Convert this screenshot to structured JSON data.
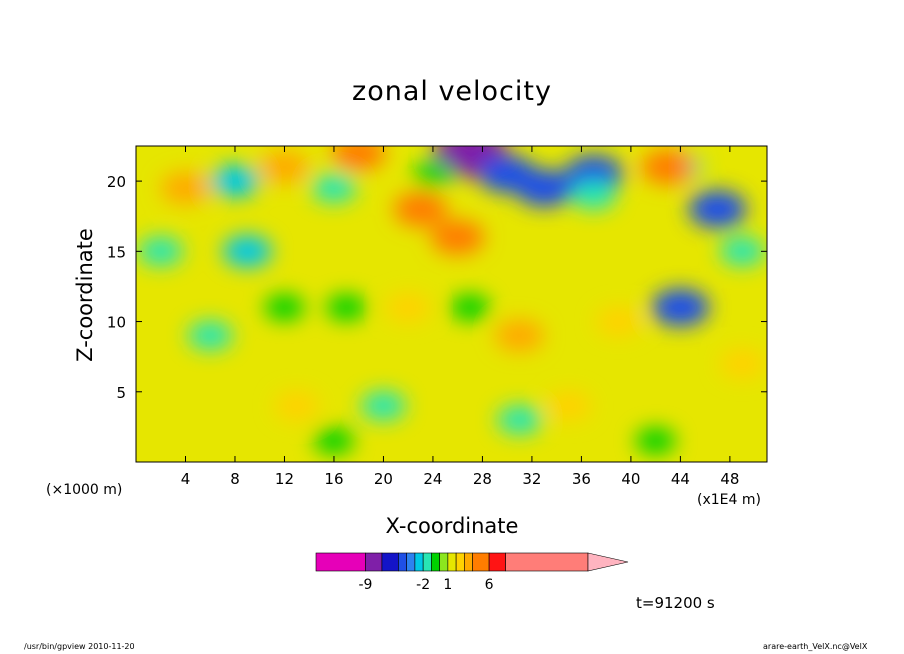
{
  "figure": {
    "title": "zonal velocity",
    "time_label": "t=91200 s",
    "x_unit_label": "(×1000 m)",
    "x_scale_label": "(x1E4 m)",
    "footer_left": "/usr/bin/gpview   2010-11-20",
    "footer_right": "arare-earth_VelX.nc@VelX"
  },
  "chart_data": {
    "type": "heatmap",
    "title": "zonal velocity",
    "xlabel": "X-coordinate",
    "ylabel": "Z-coordinate",
    "x_ticks": [
      4,
      8,
      12,
      16,
      20,
      24,
      28,
      32,
      36,
      40,
      44,
      48
    ],
    "y_ticks": [
      5,
      10,
      15,
      20
    ],
    "xlim": [
      0,
      51
    ],
    "ylim": [
      0,
      22.5
    ],
    "grid": false,
    "colorbar": {
      "tick_labels": [
        {
          "label": "-9",
          "value": -9
        },
        {
          "label": "-2",
          "value": -2
        },
        {
          "label": "1",
          "value": 1
        },
        {
          "label": "6",
          "value": 6
        }
      ],
      "levels": [
        -15,
        -9,
        -7,
        -5,
        -4,
        -3,
        -2,
        -1,
        0,
        1,
        2,
        3,
        4,
        6,
        8,
        18
      ],
      "colors": [
        "#e600b8",
        "#7f1fa8",
        "#1414c8",
        "#1f50e6",
        "#2d82f0",
        "#00c8e6",
        "#28e6b4",
        "#00d200",
        "#8ce61e",
        "#e6e600",
        "#ffd200",
        "#ffaa00",
        "#ff7d00",
        "#ff1414",
        "#ff7d78"
      ],
      "overflow_color": "#ffb4c0"
    },
    "blobs": [
      {
        "x": 27,
        "z": 22,
        "value": -9
      },
      {
        "x": 8,
        "z": 20,
        "value": -3
      },
      {
        "x": 16,
        "z": 19.5,
        "value": -2
      },
      {
        "x": 33,
        "z": 19.5,
        "value": -5
      },
      {
        "x": 30,
        "z": 20.5,
        "value": -5
      },
      {
        "x": 37,
        "z": 20.5,
        "value": -5
      },
      {
        "x": 47,
        "z": 18,
        "value": -5
      },
      {
        "x": 9,
        "z": 15,
        "value": -3
      },
      {
        "x": 2,
        "z": 15,
        "value": -2
      },
      {
        "x": 37,
        "z": 19,
        "value": -2
      },
      {
        "x": 44,
        "z": 21,
        "value": -2
      },
      {
        "x": 49,
        "z": 15,
        "value": -2
      },
      {
        "x": 20,
        "z": 4,
        "value": -2
      },
      {
        "x": 31,
        "z": 3,
        "value": -2
      },
      {
        "x": 6,
        "z": 9,
        "value": -2
      },
      {
        "x": 44,
        "z": 11,
        "value": -5
      },
      {
        "x": 18,
        "z": 22,
        "value": 4
      },
      {
        "x": 23,
        "z": 18,
        "value": 4
      },
      {
        "x": 26,
        "z": 16,
        "value": 4
      },
      {
        "x": 43,
        "z": 21,
        "value": 4
      },
      {
        "x": 31,
        "z": 9,
        "value": 3
      },
      {
        "x": 4,
        "z": 19.5,
        "value": 3
      },
      {
        "x": 12,
        "z": 21,
        "value": 3
      },
      {
        "x": 22,
        "z": 11,
        "value": 2
      },
      {
        "x": 39,
        "z": 10,
        "value": 2
      },
      {
        "x": 13,
        "z": 4,
        "value": 2
      },
      {
        "x": 35,
        "z": 4,
        "value": 2
      },
      {
        "x": 49,
        "z": 7,
        "value": 2
      },
      {
        "x": 12,
        "z": 11,
        "value": -1
      },
      {
        "x": 17,
        "z": 11,
        "value": -1
      },
      {
        "x": 27,
        "z": 11,
        "value": -1
      },
      {
        "x": 16,
        "z": 1.5,
        "value": -1
      },
      {
        "x": 42,
        "z": 1.5,
        "value": -1
      },
      {
        "x": 24,
        "z": 20.5,
        "value": -1
      }
    ]
  }
}
